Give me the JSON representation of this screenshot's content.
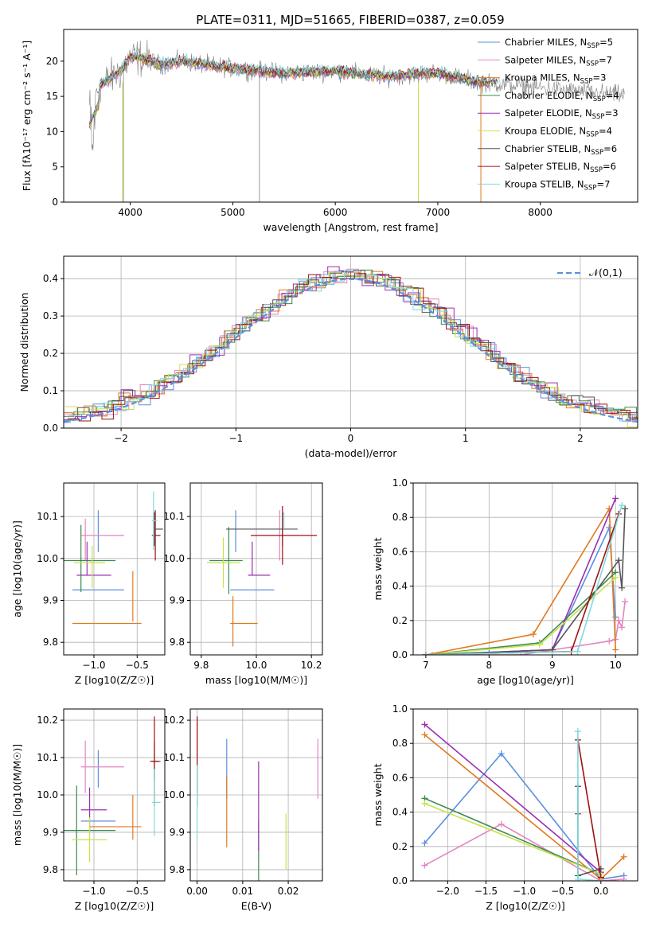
{
  "title": "PLATE=0311, MJD=51665, FIBERID=0387, z=0.059",
  "colors": {
    "Chabrier MILES": "#5b8ee0",
    "Salpeter MILES": "#e386c1",
    "Kroupa MILES": "#e07a1f",
    "Chabrier ELODIE": "#3a8a50",
    "Salpeter ELODIE": "#9a2fb0",
    "Kroupa ELODIE": "#c9e24a",
    "Chabrier STELIB": "#555555",
    "Salpeter STELIB": "#a01010",
    "Kroupa STELIB": "#7fd9dc",
    "data": "#808080",
    "normal": "#5b8ee0"
  },
  "chart_data": [
    {
      "id": "spectrum",
      "type": "line",
      "title": "PLATE=0311, MJD=51665, FIBERID=0387, z=0.059",
      "xlabel": "wavelength [Angstrom, rest frame]",
      "ylabel": "Flux [fλ10⁻¹⁷ erg cm⁻² s⁻¹ A⁻¹]",
      "xlim": [
        3350,
        8950
      ],
      "ylim": [
        0,
        24.5
      ],
      "xticks": [
        4000,
        5000,
        6000,
        7000,
        8000
      ],
      "yticks": [
        0,
        5,
        10,
        15,
        20
      ],
      "legend_position": "right",
      "legend": [
        {
          "model": "Chabrier MILES",
          "nssp": "5"
        },
        {
          "model": "Salpeter MILES",
          "nssp": "7"
        },
        {
          "model": "Kroupa MILES",
          "nssp": "3"
        },
        {
          "model": "Chabrier ELODIE",
          "nssp": "4"
        },
        {
          "model": "Salpeter ELODIE",
          "nssp": "3"
        },
        {
          "model": "Kroupa ELODIE",
          "nssp": "4"
        },
        {
          "model": "Chabrier STELIB",
          "nssp": "6"
        },
        {
          "model": "Salpeter STELIB",
          "nssp": "6"
        },
        {
          "model": "Kroupa STELIB",
          "nssp": "7"
        }
      ],
      "continuum": {
        "wavelength": [
          3600,
          3700,
          3800,
          3900,
          4000,
          4100,
          4300,
          4500,
          5000,
          5500,
          6000,
          6500,
          7000,
          7400,
          7800,
          8300,
          8800
        ],
        "flux": [
          13.5,
          16.5,
          17.5,
          18.5,
          20.5,
          20.5,
          19.5,
          20.0,
          19.0,
          18.3,
          18.6,
          17.8,
          18.4,
          17.0,
          16.5,
          15.8,
          15.2
        ]
      },
      "dips": [
        {
          "wavelength": 3933,
          "flux": 0.0
        },
        {
          "wavelength": 5260,
          "flux": 0.0
        },
        {
          "wavelength": 6810,
          "flux": 0.0
        },
        {
          "wavelength": 7420,
          "flux": 0.0
        }
      ],
      "grid": false
    },
    {
      "id": "residuals",
      "type": "line",
      "xlabel": "(data-model)/error",
      "ylabel": "Normed distribution",
      "xlim": [
        -2.5,
        2.5
      ],
      "ylim": [
        0,
        0.46
      ],
      "xticks": [
        -2,
        -1,
        0,
        1,
        2
      ],
      "yticks": [
        0,
        0.1,
        0.2,
        0.3,
        0.4
      ],
      "legend_position": "top-right",
      "normal_label": "𝒩(0,1)",
      "grid": true,
      "bin_width": 0.1
    },
    {
      "id": "z-age",
      "type": "scatter",
      "xlabel": "Z [log10(Z/Z☉)]",
      "ylabel": "age  [log10(age/yr)]",
      "xlim": [
        -1.35,
        -0.18
      ],
      "ylim": [
        9.77,
        10.18
      ],
      "xticks": [
        -1.0,
        -0.5
      ],
      "yticks": [
        9.8,
        9.9,
        10.0,
        10.1
      ],
      "grid": true,
      "points": [
        {
          "model": "Chabrier MILES",
          "x": -0.95,
          "xerr": 0.3,
          "y": 9.925,
          "yerr": 0.05,
          "xv": -0.95,
          "yv": 10.065
        },
        {
          "model": "Salpeter MILES",
          "x": -0.9,
          "xerr": 0.25,
          "y": 10.055,
          "yerr": 0.05,
          "xv": -1.1,
          "yv": 10.045
        },
        {
          "model": "Kroupa MILES",
          "x": -0.85,
          "xerr": 0.4,
          "y": 9.845,
          "yerr": 0.06,
          "xv": -0.55,
          "yv": 9.91
        },
        {
          "model": "Chabrier ELODIE",
          "x": -1.1,
          "xerr": 0.35,
          "y": 9.995,
          "yerr": 0.08,
          "xv": -1.15,
          "yv": 10.0
        },
        {
          "model": "Salpeter ELODIE",
          "x": -1.0,
          "xerr": 0.2,
          "y": 9.96,
          "yerr": 0.04,
          "xv": -1.08,
          "yv": 10.0
        },
        {
          "model": "Kroupa ELODIE",
          "x": -1.05,
          "xerr": 0.18,
          "y": 9.99,
          "yerr": 0.05,
          "xv": -1.02,
          "yv": 9.98
        },
        {
          "model": "Chabrier STELIB",
          "x": -0.25,
          "xerr": 0.05,
          "y": 10.07,
          "yerr": 0.04,
          "xv": -0.3,
          "yv": 10.07
        },
        {
          "model": "Salpeter STELIB",
          "x": -0.28,
          "xerr": 0.05,
          "y": 10.055,
          "yerr": 0.06,
          "xv": -0.29,
          "yv": 10.055
        },
        {
          "model": "Kroupa STELIB",
          "x": -0.3,
          "xerr": 0.03,
          "y": 10.09,
          "yerr": 0.07,
          "xv": -0.31,
          "yv": 10.09
        }
      ]
    },
    {
      "id": "mass-age",
      "type": "scatter",
      "xlabel": "mass [log10(M/M☉)]",
      "ylabel": "",
      "xlim": [
        9.76,
        10.24
      ],
      "ylim": [
        9.77,
        10.18
      ],
      "xticks": [
        9.8,
        10.0,
        10.2
      ],
      "yticks": [
        9.8,
        9.9,
        10.0,
        10.1
      ],
      "grid": true,
      "points": [
        {
          "model": "Chabrier MILES",
          "x": 9.985,
          "xerr": 0.08,
          "y": 9.925,
          "yerr": 0.05,
          "xv": 9.925,
          "yv": 10.065
        },
        {
          "model": "Salpeter MILES",
          "x": 10.085,
          "xerr": 0.0,
          "y": 10.055,
          "yerr": 0.06,
          "xv": 10.085,
          "yv": 10.055
        },
        {
          "model": "Kroupa MILES",
          "x": 9.955,
          "xerr": 0.05,
          "y": 9.845,
          "yerr": 0.06,
          "xv": 9.915,
          "yv": 9.85
        },
        {
          "model": "Chabrier ELODIE",
          "x": 9.89,
          "xerr": 0.06,
          "y": 9.995,
          "yerr": 0.08,
          "xv": 9.9,
          "yv": 9.995
        },
        {
          "model": "Salpeter ELODIE",
          "x": 10.01,
          "xerr": 0.04,
          "y": 9.96,
          "yerr": 0.04,
          "xv": 9.985,
          "yv": 10.0
        },
        {
          "model": "Kroupa ELODIE",
          "x": 9.88,
          "xerr": 0.06,
          "y": 9.99,
          "yerr": 0.06,
          "xv": 9.88,
          "yv": 9.99
        },
        {
          "model": "Chabrier STELIB",
          "x": 10.02,
          "xerr": 0.13,
          "y": 10.07,
          "yerr": 0.04,
          "xv": 10.095,
          "yv": 10.07
        },
        {
          "model": "Salpeter STELIB",
          "x": 10.1,
          "xerr": 0.12,
          "y": 10.055,
          "yerr": 0.07,
          "xv": 10.095,
          "yv": 10.055
        },
        {
          "model": "Kroupa STELIB",
          "x": 10.1,
          "xerr": 0.0,
          "y": 10.09,
          "yerr": 0.02,
          "xv": 10.1,
          "yv": 10.09
        }
      ]
    },
    {
      "id": "age-weight",
      "type": "line",
      "xlabel": "age  [log10(age/yr)]",
      "ylabel": "mass weight",
      "xlim": [
        6.8,
        10.35
      ],
      "ylim": [
        0,
        1.0
      ],
      "xticks": [
        7,
        8,
        9,
        10
      ],
      "yticks": [
        0.0,
        0.2,
        0.4,
        0.6,
        0.8,
        1.0
      ],
      "grid": true,
      "series": [
        {
          "model": "Chabrier MILES",
          "x": [
            7.0,
            8.0,
            9.0,
            9.9,
            10.0
          ],
          "y": [
            0.0,
            0.01,
            0.03,
            0.74,
            0.22
          ]
        },
        {
          "model": "Salpeter MILES",
          "x": [
            7.1,
            8.5,
            9.9,
            10.0,
            10.05,
            10.1,
            10.15
          ],
          "y": [
            0.0,
            0.0,
            0.08,
            0.09,
            0.2,
            0.16,
            0.31
          ]
        },
        {
          "model": "Kroupa MILES",
          "x": [
            7.0,
            8.7,
            9.9,
            10.0
          ],
          "y": [
            0.0,
            0.12,
            0.85,
            0.03
          ]
        },
        {
          "model": "Chabrier ELODIE",
          "x": [
            7.0,
            8.8,
            10.0
          ],
          "y": [
            0.0,
            0.07,
            0.48
          ]
        },
        {
          "model": "Salpeter ELODIE",
          "x": [
            7.0,
            9.0,
            10.0
          ],
          "y": [
            0.0,
            0.03,
            0.91
          ]
        },
        {
          "model": "Kroupa ELODIE",
          "x": [
            7.0,
            8.8,
            10.0
          ],
          "y": [
            0.0,
            0.06,
            0.45
          ]
        },
        {
          "model": "Chabrier STELIB",
          "x": [
            7.0,
            9.0,
            10.05,
            10.1,
            10.15
          ],
          "y": [
            0.0,
            0.03,
            0.55,
            0.39,
            0.85
          ]
        },
        {
          "model": "Salpeter STELIB",
          "x": [
            7.0,
            9.3,
            10.05
          ],
          "y": [
            0.0,
            0.02,
            0.82
          ]
        },
        {
          "model": "Kroupa STELIB",
          "x": [
            7.0,
            9.4,
            10.1
          ],
          "y": [
            0.0,
            0.02,
            0.87
          ]
        }
      ]
    },
    {
      "id": "z-mass",
      "type": "scatter",
      "xlabel": "Z [log10(Z/Z☉)]",
      "ylabel": "mass [log10(M/M☉)]",
      "xlim": [
        -1.35,
        -0.18
      ],
      "ylim": [
        9.77,
        10.23
      ],
      "xticks": [
        -1.0,
        -0.5
      ],
      "yticks": [
        9.8,
        9.9,
        10.0,
        10.1,
        10.2
      ],
      "grid": true,
      "points": [
        {
          "model": "Chabrier MILES",
          "x": -0.95,
          "xerr": 0.2,
          "y": 9.93,
          "yerr": 0.05,
          "xv": -0.95,
          "yv": 10.07
        },
        {
          "model": "Salpeter MILES",
          "x": -0.9,
          "xerr": 0.25,
          "y": 10.075,
          "yerr": 0.07,
          "xv": -1.1,
          "yv": 10.075
        },
        {
          "model": "Kroupa MILES",
          "x": -0.75,
          "xerr": 0.3,
          "y": 9.915,
          "yerr": 0.06,
          "xv": -0.55,
          "yv": 9.94
        },
        {
          "model": "Chabrier ELODIE",
          "x": -1.15,
          "xerr": 0.4,
          "y": 9.905,
          "yerr": 0.12,
          "xv": -1.2,
          "yv": 9.905
        },
        {
          "model": "Salpeter ELODIE",
          "x": -1.0,
          "xerr": 0.15,
          "y": 9.96,
          "yerr": 0.06,
          "xv": -1.05,
          "yv": 9.96
        },
        {
          "model": "Kroupa ELODIE",
          "x": -1.05,
          "xerr": 0.2,
          "y": 9.88,
          "yerr": 0.06,
          "xv": -1.05,
          "yv": 9.88
        },
        {
          "model": "Chabrier STELIB",
          "x": -0.28,
          "xerr": 0.05,
          "y": 10.09,
          "yerr": 0.05,
          "xv": -0.3,
          "yv": 10.09
        },
        {
          "model": "Salpeter STELIB",
          "x": -0.3,
          "xerr": 0.05,
          "y": 10.09,
          "yerr": 0.12,
          "xv": -0.3,
          "yv": 10.09
        },
        {
          "model": "Kroupa STELIB",
          "x": -0.28,
          "xerr": 0.05,
          "y": 9.98,
          "yerr": 0.09,
          "xv": -0.3,
          "yv": 9.98
        }
      ]
    },
    {
      "id": "ebv-mass",
      "type": "scatter",
      "xlabel": "E(B-V)",
      "ylabel": "",
      "xlim": [
        -0.0015,
        0.0275
      ],
      "ylim": [
        9.77,
        10.23
      ],
      "xticks": [
        0.0,
        0.01,
        0.02
      ],
      "yticks": [
        9.8,
        9.9,
        10.0,
        10.1,
        10.2
      ],
      "grid": true,
      "points": [
        {
          "model": "Chabrier MILES",
          "x": 0.0065,
          "xerr": 0,
          "y": 10.07,
          "yerr": 0.08
        },
        {
          "model": "Salpeter MILES",
          "x": 0.0265,
          "xerr": 0,
          "y": 10.07,
          "yerr": 0.08
        },
        {
          "model": "Kroupa MILES",
          "x": 0.0065,
          "xerr": 0,
          "y": 9.955,
          "yerr": 0.095
        },
        {
          "model": "Chabrier ELODIE",
          "x": 0.0135,
          "xerr": 0,
          "y": 9.845,
          "yerr": 0.085
        },
        {
          "model": "Salpeter ELODIE",
          "x": 0.0135,
          "xerr": 0,
          "y": 9.97,
          "yerr": 0.12
        },
        {
          "model": "Kroupa ELODIE",
          "x": 0.0195,
          "xerr": 0,
          "y": 9.875,
          "yerr": 0.075
        },
        {
          "model": "Chabrier STELIB",
          "x": 0.0,
          "xerr": 0,
          "y": 10.11,
          "yerr": 0.1
        },
        {
          "model": "Salpeter STELIB",
          "x": 0.0,
          "xerr": 0,
          "y": 10.09,
          "yerr": 0.12
        },
        {
          "model": "Kroupa STELIB",
          "x": 0.0,
          "xerr": 0,
          "y": 9.98,
          "yerr": 0.1
        }
      ]
    },
    {
      "id": "z-weight",
      "type": "line",
      "xlabel": "Z [log10(Z/Z☉)]",
      "ylabel": "mass weight",
      "xlim": [
        -2.45,
        0.48
      ],
      "ylim": [
        0,
        1.0
      ],
      "xticks": [
        -2.0,
        -1.5,
        -1.0,
        -0.5,
        0.0
      ],
      "yticks": [
        0.0,
        0.2,
        0.4,
        0.6,
        0.8,
        1.0
      ],
      "grid": true,
      "series": [
        {
          "model": "Chabrier MILES",
          "x": [
            -2.3,
            -1.3,
            0.0,
            0.3
          ],
          "y": [
            0.22,
            0.74,
            0.01,
            0.03
          ]
        },
        {
          "model": "Salpeter MILES",
          "x": [
            -2.3,
            -1.3,
            0.0,
            0.3
          ],
          "y": [
            0.09,
            0.33,
            0.0,
            0.01
          ]
        },
        {
          "model": "Kroupa MILES",
          "x": [
            -2.3,
            0.0,
            0.3
          ],
          "y": [
            0.85,
            0.01,
            0.14
          ]
        },
        {
          "model": "Chabrier ELODIE",
          "x": [
            -2.3,
            0.0
          ],
          "y": [
            0.48,
            0.04
          ]
        },
        {
          "model": "Salpeter ELODIE",
          "x": [
            -2.3,
            0.0
          ],
          "y": [
            0.91,
            0.05
          ]
        },
        {
          "model": "Kroupa ELODIE",
          "x": [
            -2.3,
            0.0
          ],
          "y": [
            0.45,
            0.04
          ]
        },
        {
          "model": "Chabrier STELIB",
          "x": [
            -0.3,
            -0.3,
            -0.3,
            0.0
          ],
          "y": [
            0.55,
            0.39,
            0.03,
            0.07
          ]
        },
        {
          "model": "Salpeter STELIB",
          "x": [
            -0.3,
            0.0
          ],
          "y": [
            0.82,
            0.02
          ]
        },
        {
          "model": "Kroupa STELIB",
          "x": [
            -0.3,
            -0.3,
            0.0
          ],
          "y": [
            0.87,
            0.01,
            0.0
          ]
        }
      ]
    }
  ]
}
